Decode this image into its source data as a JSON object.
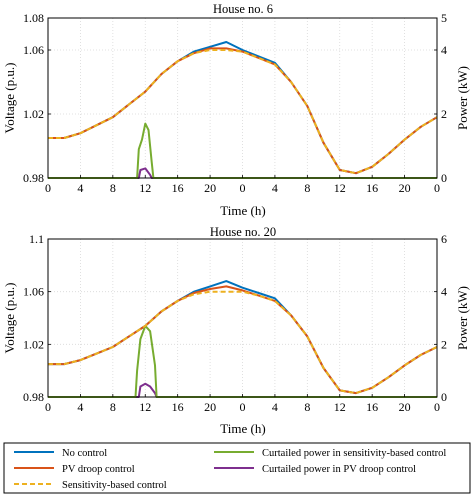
{
  "colors": {
    "no_control": "#0072BD",
    "pv_droop": "#D95319",
    "sensitivity": "#EDB120",
    "curtailed_sensitivity": "#77AC30",
    "curtailed_droop": "#7E2F8E",
    "grid": "#d9d9d9"
  },
  "legend": [
    {
      "key": "no_control",
      "label": "No control",
      "dashed": false
    },
    {
      "key": "pv_droop",
      "label": "PV droop control",
      "dashed": false
    },
    {
      "key": "sensitivity",
      "label": "Sensitivity-based control",
      "dashed": true
    },
    {
      "key": "curtailed_sensitivity",
      "label": "Curtailed power in sensitivity-based control",
      "dashed": false
    },
    {
      "key": "curtailed_droop",
      "label": "Curtailed power in PV droop control",
      "dashed": false
    }
  ],
  "chart_data": [
    {
      "type": "line",
      "title": "House no. 6",
      "xlabel": "Time (h)",
      "ylabel": "Voltage (p.u.)",
      "y2label": "Power (kW)",
      "xlim": [
        0,
        24
      ],
      "ylim": [
        0.98,
        1.08
      ],
      "y2lim": [
        0,
        5
      ],
      "xticks": [
        "0",
        "4",
        "8",
        "12",
        "16",
        "20",
        "0",
        "4",
        "8",
        "12",
        "16",
        "20",
        "0"
      ],
      "yticks": [
        "0.98",
        "1.02",
        "1.06",
        "1.08"
      ],
      "y2ticks": [
        "0",
        "2",
        "4",
        "5"
      ],
      "grid": true,
      "series": [
        {
          "name": "No control",
          "key": "no_control",
          "axis": "left",
          "x": [
            0,
            1,
            2,
            3,
            4,
            5,
            6,
            7,
            8,
            9,
            10,
            11,
            12,
            13,
            14,
            15,
            16,
            17,
            18,
            19,
            20,
            21,
            22,
            23,
            24
          ],
          "y": [
            1.005,
            1.005,
            1.008,
            1.013,
            1.018,
            1.026,
            1.034,
            1.045,
            1.053,
            1.059,
            1.062,
            1.065,
            1.06,
            1.056,
            1.052,
            1.04,
            1.025,
            1.002,
            0.985,
            0.983,
            0.987,
            0.995,
            1.004,
            1.012,
            1.018
          ]
        },
        {
          "name": "PV droop control",
          "key": "pv_droop",
          "axis": "left",
          "x": [
            0,
            1,
            2,
            3,
            4,
            5,
            6,
            7,
            8,
            9,
            10,
            11,
            12,
            13,
            14,
            15,
            16,
            17,
            18,
            19,
            20,
            21,
            22,
            23,
            24
          ],
          "y": [
            1.005,
            1.005,
            1.008,
            1.013,
            1.018,
            1.026,
            1.034,
            1.045,
            1.053,
            1.058,
            1.061,
            1.061,
            1.059,
            1.055,
            1.051,
            1.04,
            1.025,
            1.002,
            0.985,
            0.983,
            0.987,
            0.995,
            1.004,
            1.012,
            1.018
          ]
        },
        {
          "name": "Sensitivity-based control",
          "key": "sensitivity",
          "axis": "left",
          "dashed": true,
          "x": [
            0,
            1,
            2,
            3,
            4,
            5,
            6,
            7,
            8,
            9,
            10,
            11,
            12,
            13,
            14,
            15,
            16,
            17,
            18,
            19,
            20,
            21,
            22,
            23,
            24
          ],
          "y": [
            1.005,
            1.005,
            1.008,
            1.013,
            1.018,
            1.026,
            1.034,
            1.045,
            1.053,
            1.058,
            1.06,
            1.06,
            1.059,
            1.055,
            1.051,
            1.04,
            1.025,
            1.002,
            0.985,
            0.983,
            0.987,
            0.995,
            1.004,
            1.012,
            1.018
          ]
        },
        {
          "name": "Curtailed power in sensitivity-based control",
          "key": "curtailed_sensitivity",
          "axis": "right",
          "x": [
            0,
            5.5,
            5.6,
            5.8,
            6.0,
            6.2,
            6.4,
            6.5,
            24
          ],
          "y": [
            0,
            0,
            0.9,
            1.2,
            1.7,
            1.5,
            0.5,
            0,
            0
          ]
        },
        {
          "name": "Curtailed power in PV droop control",
          "key": "curtailed_droop",
          "axis": "right",
          "x": [
            0,
            5.6,
            5.7,
            6.0,
            6.3,
            6.4,
            24
          ],
          "y": [
            0,
            0,
            0.25,
            0.3,
            0.1,
            0,
            0
          ]
        }
      ]
    },
    {
      "type": "line",
      "title": "House no. 20",
      "xlabel": "Time (h)",
      "ylabel": "Voltage (p.u.)",
      "y2label": "Power (kW)",
      "xlim": [
        0,
        24
      ],
      "ylim": [
        0.98,
        1.1
      ],
      "y2lim": [
        0,
        6
      ],
      "xticks": [
        "0",
        "4",
        "8",
        "12",
        "16",
        "20",
        "0",
        "4",
        "8",
        "12",
        "16",
        "20",
        "0"
      ],
      "yticks": [
        "0.98",
        "1.02",
        "1.06",
        "1.1"
      ],
      "y2ticks": [
        "0",
        "2",
        "4",
        "6"
      ],
      "grid": true,
      "series": [
        {
          "name": "No control",
          "key": "no_control",
          "axis": "left",
          "x": [
            0,
            1,
            2,
            3,
            4,
            5,
            6,
            7,
            8,
            9,
            10,
            11,
            12,
            13,
            14,
            15,
            16,
            17,
            18,
            19,
            20,
            21,
            22,
            23,
            24
          ],
          "y": [
            1.005,
            1.005,
            1.008,
            1.013,
            1.018,
            1.026,
            1.034,
            1.045,
            1.053,
            1.06,
            1.064,
            1.068,
            1.063,
            1.059,
            1.055,
            1.042,
            1.026,
            1.002,
            0.985,
            0.983,
            0.987,
            0.995,
            1.004,
            1.012,
            1.018
          ]
        },
        {
          "name": "PV droop control",
          "key": "pv_droop",
          "axis": "left",
          "x": [
            0,
            1,
            2,
            3,
            4,
            5,
            6,
            7,
            8,
            9,
            10,
            11,
            12,
            13,
            14,
            15,
            16,
            17,
            18,
            19,
            20,
            21,
            22,
            23,
            24
          ],
          "y": [
            1.005,
            1.005,
            1.008,
            1.013,
            1.018,
            1.026,
            1.034,
            1.045,
            1.053,
            1.059,
            1.062,
            1.064,
            1.061,
            1.057,
            1.053,
            1.042,
            1.026,
            1.002,
            0.985,
            0.983,
            0.987,
            0.995,
            1.004,
            1.012,
            1.018
          ]
        },
        {
          "name": "Sensitivity-based control",
          "key": "sensitivity",
          "axis": "left",
          "dashed": true,
          "x": [
            0,
            1,
            2,
            3,
            4,
            5,
            6,
            7,
            8,
            9,
            10,
            11,
            12,
            13,
            14,
            15,
            16,
            17,
            18,
            19,
            20,
            21,
            22,
            23,
            24
          ],
          "y": [
            1.005,
            1.005,
            1.008,
            1.013,
            1.018,
            1.026,
            1.034,
            1.045,
            1.053,
            1.058,
            1.06,
            1.06,
            1.06,
            1.057,
            1.053,
            1.042,
            1.026,
            1.002,
            0.985,
            0.983,
            0.987,
            0.995,
            1.004,
            1.012,
            1.018
          ]
        },
        {
          "name": "Curtailed power in sensitivity-based control",
          "key": "curtailed_sensitivity",
          "axis": "right",
          "x": [
            0,
            5.4,
            5.5,
            5.7,
            6.0,
            6.3,
            6.6,
            6.7,
            24
          ],
          "y": [
            0,
            0,
            1.0,
            2.2,
            2.7,
            2.5,
            1.2,
            0,
            0
          ]
        },
        {
          "name": "Curtailed power in PV droop control",
          "key": "curtailed_droop",
          "axis": "right",
          "x": [
            0,
            5.6,
            5.7,
            6.0,
            6.3,
            6.6,
            6.7,
            24
          ],
          "y": [
            0,
            0,
            0.4,
            0.5,
            0.4,
            0.15,
            0,
            0
          ]
        }
      ]
    }
  ]
}
